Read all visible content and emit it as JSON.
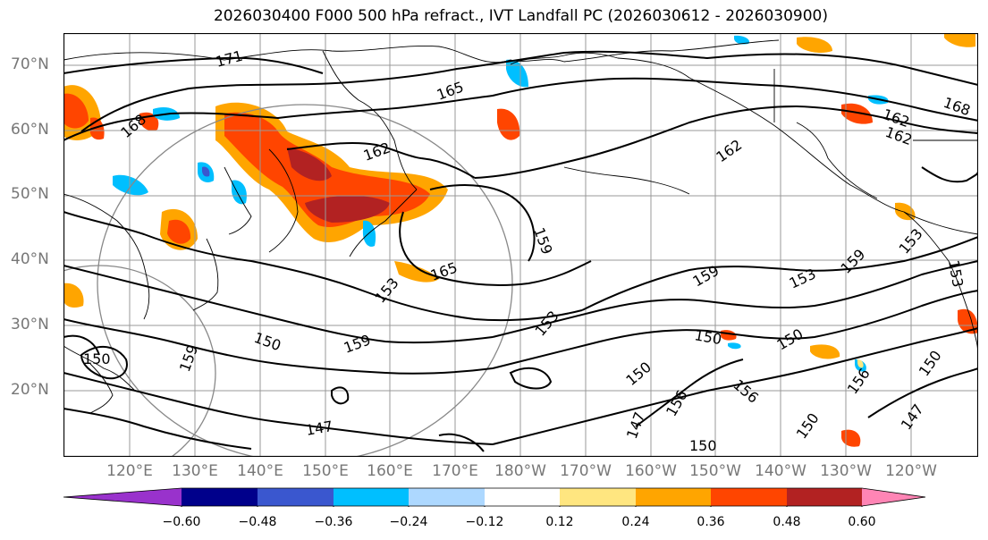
{
  "title": "2026030400 F000 500 hPa refract., IVT Landfall PC (2026030612 - 2026030900)",
  "lat_labels": [
    "70°N",
    "60°N",
    "50°N",
    "40°N",
    "30°N",
    "20°N"
  ],
  "lon_labels": [
    "120°E",
    "130°E",
    "140°E",
    "150°E",
    "160°E",
    "170°E",
    "180°W",
    "170°W",
    "160°W",
    "150°W",
    "140°W",
    "130°W",
    "120°W"
  ],
  "contour_labels": [
    "171",
    "168",
    "165",
    "162",
    "162",
    "162",
    "162",
    "168",
    "159",
    "165",
    "159",
    "153",
    "153",
    "159",
    "153",
    "153",
    "159",
    "150",
    "150",
    "150",
    "159",
    "147",
    "147",
    "150",
    "156",
    "156",
    "150",
    "150",
    "147",
    "156",
    "150",
    "150",
    "153"
  ],
  "colorbar": {
    "ticks": [
      "−0.60",
      "−0.48",
      "−0.36",
      "−0.24",
      "−0.12",
      "0.12",
      "0.24",
      "0.36",
      "0.48",
      "0.60"
    ],
    "colors": [
      "#9932cc",
      "#00008b",
      "#3a57cf",
      "#00bfff",
      "#add8ff",
      "#ffffff",
      "#ffe680",
      "#ffa500",
      "#ff4500",
      "#b22222",
      "#ff85b5"
    ]
  },
  "anomaly_colors": {
    "orange": "#ffa500",
    "red_orange": "#ff4500",
    "dark_red": "#b22222",
    "light_yellow": "#ffe680",
    "sky_blue": "#00bfff",
    "mid_blue": "#3a57cf",
    "light_blue": "#add8ff"
  }
}
